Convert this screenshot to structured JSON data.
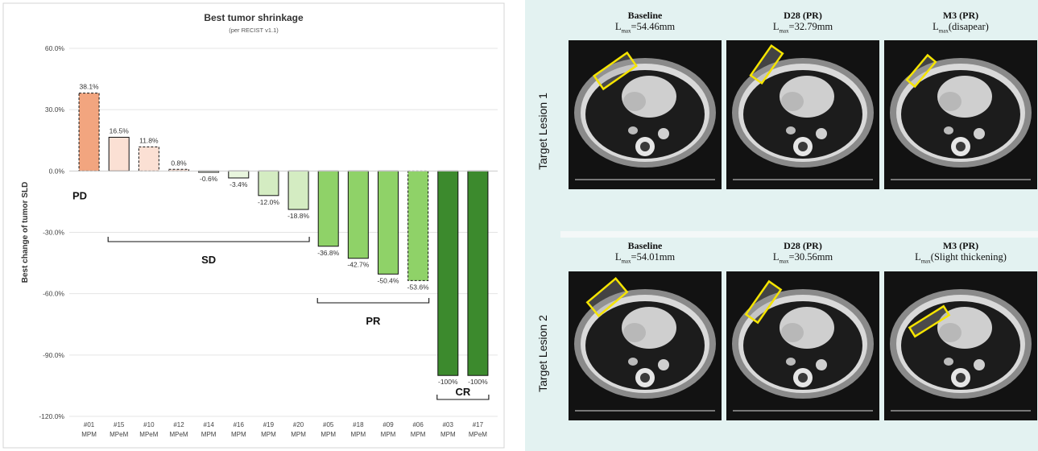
{
  "chart_data": {
    "type": "bar",
    "title": "Best tumor shrinkage",
    "subtitle": "(per RECIST v1.1)",
    "ylabel": "Best change of tumor SLD",
    "xlabel": "",
    "ylim": [
      -120,
      60
    ],
    "yticks": [
      60,
      30,
      0,
      -30,
      -60,
      -90,
      -120
    ],
    "ytick_labels": [
      "60.0%",
      "30.0%",
      "0.0%",
      "-30.0%",
      "-60.0%",
      "-90.0%",
      "-120.0%"
    ],
    "grid": true,
    "categories": [
      {
        "id": "#01",
        "type": "MPM"
      },
      {
        "id": "#15",
        "type": "MPeM"
      },
      {
        "id": "#10",
        "type": "MPeM"
      },
      {
        "id": "#12",
        "type": "MPeM"
      },
      {
        "id": "#14",
        "type": "MPM"
      },
      {
        "id": "#16",
        "type": "MPM"
      },
      {
        "id": "#19",
        "type": "MPM"
      },
      {
        "id": "#20",
        "type": "MPM"
      },
      {
        "id": "#05",
        "type": "MPM"
      },
      {
        "id": "#18",
        "type": "MPM"
      },
      {
        "id": "#09",
        "type": "MPM"
      },
      {
        "id": "#06",
        "type": "MPM"
      },
      {
        "id": "#03",
        "type": "MPM"
      },
      {
        "id": "#17",
        "type": "MPeM"
      }
    ],
    "values": [
      38.1,
      16.5,
      11.8,
      0.8,
      -0.6,
      -3.4,
      -12.0,
      -18.8,
      -36.8,
      -42.7,
      -50.4,
      -53.6,
      -100,
      -100
    ],
    "value_labels": [
      "38.1%",
      "16.5%",
      "11.8%",
      "0.8%",
      "-0.6%",
      "-3.4%",
      "-12.0%",
      "-18.8%",
      "-36.8%",
      "-42.7%",
      "-50.4%",
      "-53.6%",
      "-100%",
      "-100%"
    ],
    "dashed": [
      true,
      false,
      true,
      true,
      false,
      false,
      false,
      false,
      false,
      false,
      false,
      true,
      false,
      false
    ],
    "groups": [
      {
        "label": "PD",
        "from": 0,
        "to": 0,
        "bracket": false
      },
      {
        "label": "SD",
        "from": 1,
        "to": 7,
        "bracket": true
      },
      {
        "label": "PR",
        "from": 8,
        "to": 11,
        "bracket": true
      },
      {
        "label": "CR",
        "from": 12,
        "to": 13,
        "bracket": true
      }
    ],
    "colors": {
      "pd": "#f2a57f",
      "sd": "#fbe0d4",
      "sd_neg": "#e8f5dd",
      "sd_neg_light": "#d4ecc2",
      "pr": "#8fd268",
      "cr": "#3c8a2d"
    }
  },
  "ct": {
    "rows": [
      {
        "label": "Target Lesion 1",
        "cols": [
          {
            "title": "Baseline",
            "lmax_prefix": "L",
            "lmax_sub": "max",
            "lmax_value": "=54.46mm"
          },
          {
            "title": "D28 (PR)",
            "lmax_prefix": "L",
            "lmax_sub": "max",
            "lmax_value": "=32.79mm"
          },
          {
            "title": "M3 (PR)",
            "lmax_prefix": "L",
            "lmax_sub": "max",
            "lmax_value": "(disapear)"
          }
        ]
      },
      {
        "label": "Target Lesion 2",
        "cols": [
          {
            "title": "Baseline",
            "lmax_prefix": "L",
            "lmax_sub": "max",
            "lmax_value": "=54.01mm"
          },
          {
            "title": "D28 (PR)",
            "lmax_prefix": "L",
            "lmax_sub": "max",
            "lmax_value": "=30.56mm"
          },
          {
            "title": "M3 (PR)",
            "lmax_prefix": "L",
            "lmax_sub": "max",
            "lmax_value": "(Slight thickening)"
          }
        ]
      }
    ],
    "highlight_color": "#f5e400"
  }
}
